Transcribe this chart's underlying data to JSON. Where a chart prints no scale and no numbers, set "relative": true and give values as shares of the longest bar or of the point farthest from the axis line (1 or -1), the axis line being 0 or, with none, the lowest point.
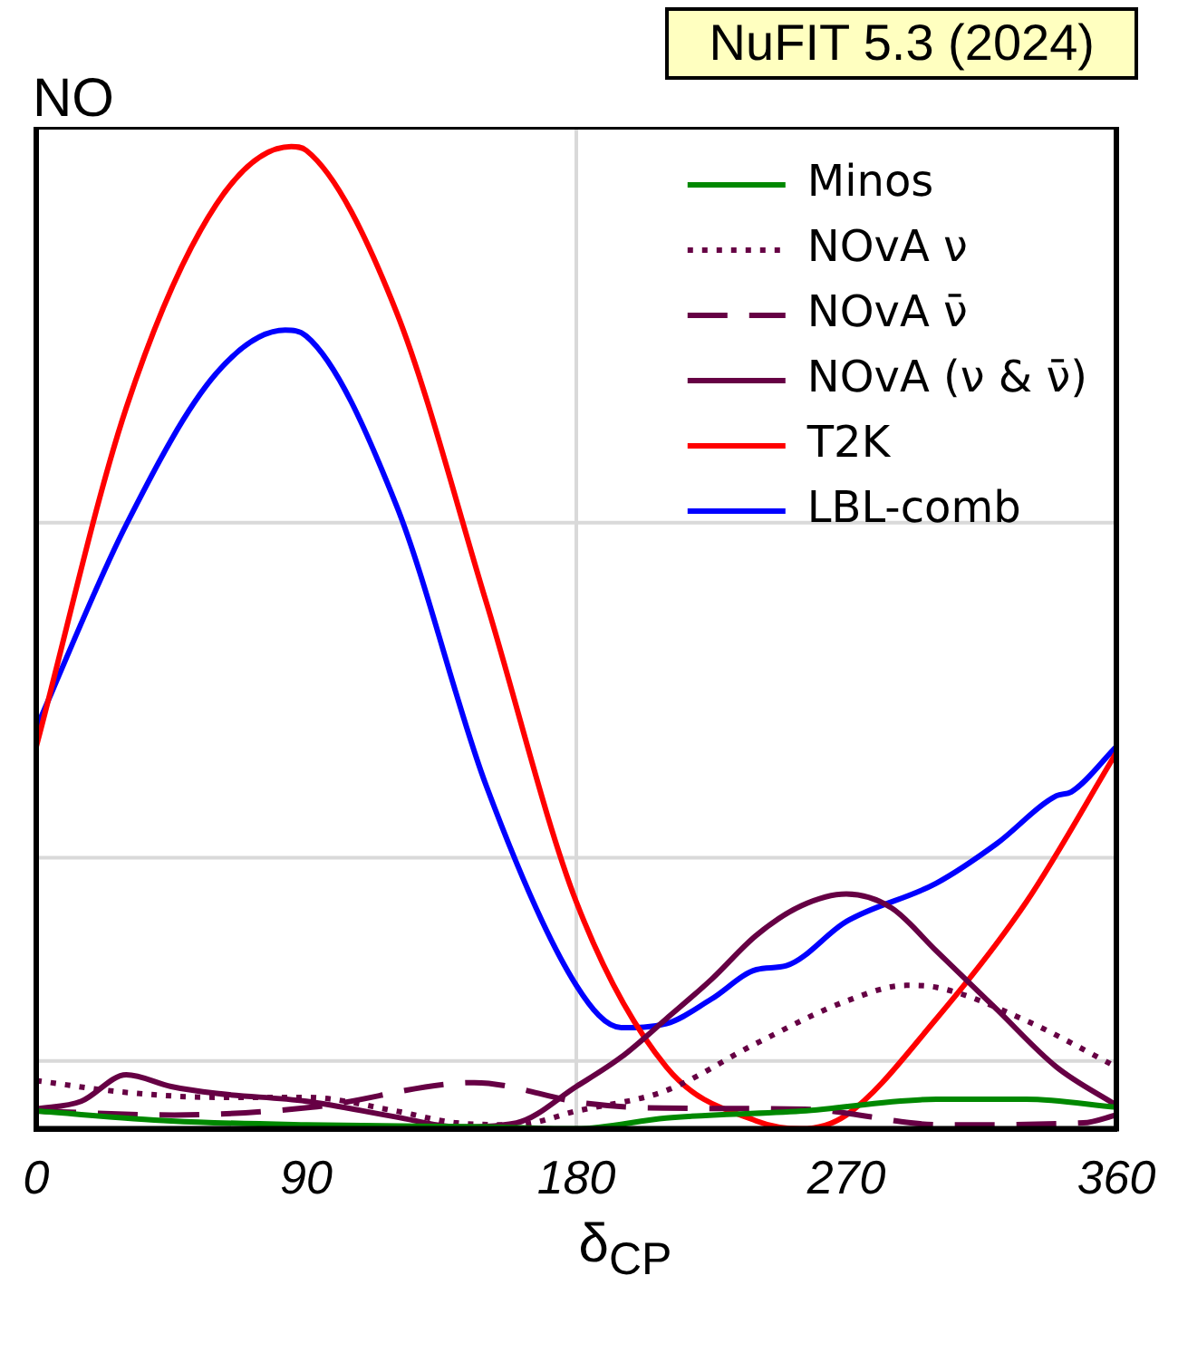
{
  "chart_data": {
    "type": "line",
    "title": "NO",
    "annotations": [
      "NuFIT 5.3 (2024)"
    ],
    "xlabel": "δ$_{CP}$",
    "relative": true,
    "xlim": [
      0,
      360
    ],
    "xticks": [
      0,
      90,
      180,
      270,
      360
    ],
    "grid": false,
    "legend": "top right",
    "marker": "none",
    "ref_lines": [
      {
        "axis": "x",
        "value": 180,
        "color": "#d9d9d9"
      },
      {
        "axis": "y",
        "value": 0.617,
        "color": "#d9d9d9"
      },
      {
        "axis": "y",
        "value": 0.276,
        "color": "#d9d9d9"
      },
      {
        "axis": "y",
        "value": 0.069,
        "color": "#d9d9d9"
      }
    ],
    "series": [
      {
        "name": "Minos",
        "color": "#008800",
        "line_style": "solid",
        "x": [
          0,
          45,
          90,
          150,
          180,
          210,
          255,
          300,
          330,
          360
        ],
        "values": [
          0.018,
          0.008,
          0.004,
          0.002,
          0,
          0.011,
          0.018,
          0.03,
          0.03,
          0.022
        ]
      },
      {
        "name": "NOvA ν",
        "color": "#660044",
        "line_style": "dotted",
        "x": [
          0,
          30,
          60,
          90,
          120,
          140,
          160,
          180,
          210,
          240,
          270,
          290,
          300,
          330,
          360
        ],
        "values": [
          0.049,
          0.037,
          0.032,
          0.032,
          0.018,
          0.006,
          0.004,
          0.018,
          0.039,
          0.087,
          0.13,
          0.146,
          0.144,
          0.11,
          0.063
        ]
      },
      {
        "name": "NOvA ν̄",
        "color": "#660044",
        "line_style": "dashed",
        "x": [
          0,
          46,
          92,
          146,
          183,
          209,
          256,
          302,
          349,
          360
        ],
        "values": [
          0.018,
          0.014,
          0.022,
          0.047,
          0.026,
          0.021,
          0.02,
          0.004,
          0.006,
          0.014
        ]
      },
      {
        "name": "NOvA (ν & ν̄)",
        "color": "#660044",
        "line_style": "solid",
        "x": [
          0,
          15,
          30,
          45,
          60,
          90,
          120,
          140,
          160,
          180,
          195,
          210,
          225,
          240,
          255,
          270,
          285,
          300,
          320,
          340,
          360
        ],
        "values": [
          0.02,
          0.028,
          0.055,
          0.043,
          0.036,
          0.028,
          0.012,
          0.002,
          0.006,
          0.043,
          0.073,
          0.112,
          0.152,
          0.197,
          0.227,
          0.239,
          0.225,
          0.181,
          0.122,
          0.063,
          0.024
        ]
      },
      {
        "name": "T2K",
        "color": "#ff0000",
        "line_style": "solid",
        "x": [
          0,
          30,
          60,
          85,
          90,
          120,
          150,
          180,
          210,
          240,
          255,
          270,
          300,
          330,
          360
        ],
        "values": [
          0.389,
          0.734,
          0.941,
          1,
          0.996,
          0.832,
          0.536,
          0.231,
          0.063,
          0.008,
          0,
          0.014,
          0.112,
          0.231,
          0.383
        ]
      },
      {
        "name": "LBL-comb",
        "color": "#0000ff",
        "line_style": "solid",
        "x": [
          0,
          30,
          60,
          83,
          90,
          120,
          150,
          180,
          195,
          210,
          225,
          240,
          250,
          270,
          300,
          320,
          340,
          345,
          360
        ],
        "values": [
          0.408,
          0.615,
          0.769,
          0.813,
          0.807,
          0.635,
          0.349,
          0.146,
          0.103,
          0.107,
          0.132,
          0.162,
          0.166,
          0.211,
          0.25,
          0.29,
          0.339,
          0.343,
          0.389
        ]
      }
    ]
  }
}
